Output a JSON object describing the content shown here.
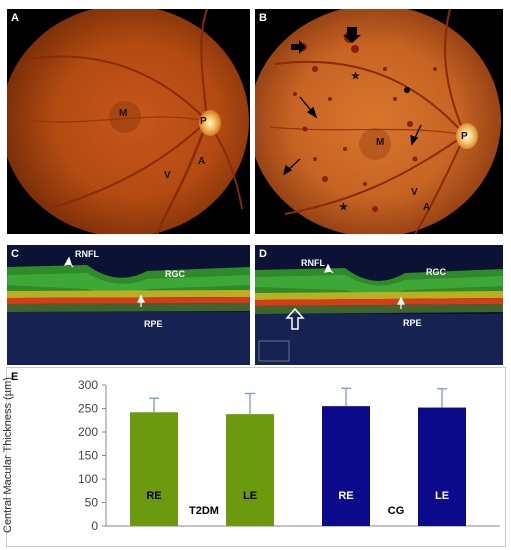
{
  "panels": {
    "a": {
      "letter": "A",
      "labels": {
        "macula": "M",
        "papilla": "P",
        "artery": "A",
        "vein": "V"
      }
    },
    "b": {
      "letter": "B",
      "labels": {
        "macula": "M",
        "papilla": "P",
        "artery": "A",
        "vein": "V"
      }
    },
    "c": {
      "letter": "C",
      "labels": {
        "rnfl": "RNFL",
        "rgc": "RGC",
        "rpe": "RPE"
      }
    },
    "d": {
      "letter": "D",
      "labels": {
        "rnfl": "RNFL",
        "rgc": "RGC",
        "rpe": "RPE"
      }
    },
    "e": {
      "letter": "E"
    }
  },
  "colors": {
    "t2dm_bar": "#6b9a0f",
    "cg_bar": "#0a0a8a",
    "error_bar": "#7a9bc0",
    "fundus_bg": "#b84e12",
    "oct_bg": "#0a1030"
  },
  "chart_data": {
    "type": "bar",
    "ylabel": "Central Macular Thickness (µm)",
    "ylim": [
      0,
      300
    ],
    "yticks": [
      0,
      50,
      100,
      150,
      200,
      250,
      300
    ],
    "groups": [
      {
        "name": "T2DM",
        "color": "#6b9a0f",
        "bars": [
          {
            "label": "RE",
            "value": 242,
            "error": 30
          },
          {
            "label": "LE",
            "value": 238,
            "error": 44
          }
        ]
      },
      {
        "name": "CG",
        "color": "#0a0a8a",
        "bars": [
          {
            "label": "RE",
            "value": 255,
            "error": 38
          },
          {
            "label": "LE",
            "value": 252,
            "error": 40
          }
        ]
      }
    ],
    "grid": false,
    "legend": "none"
  }
}
